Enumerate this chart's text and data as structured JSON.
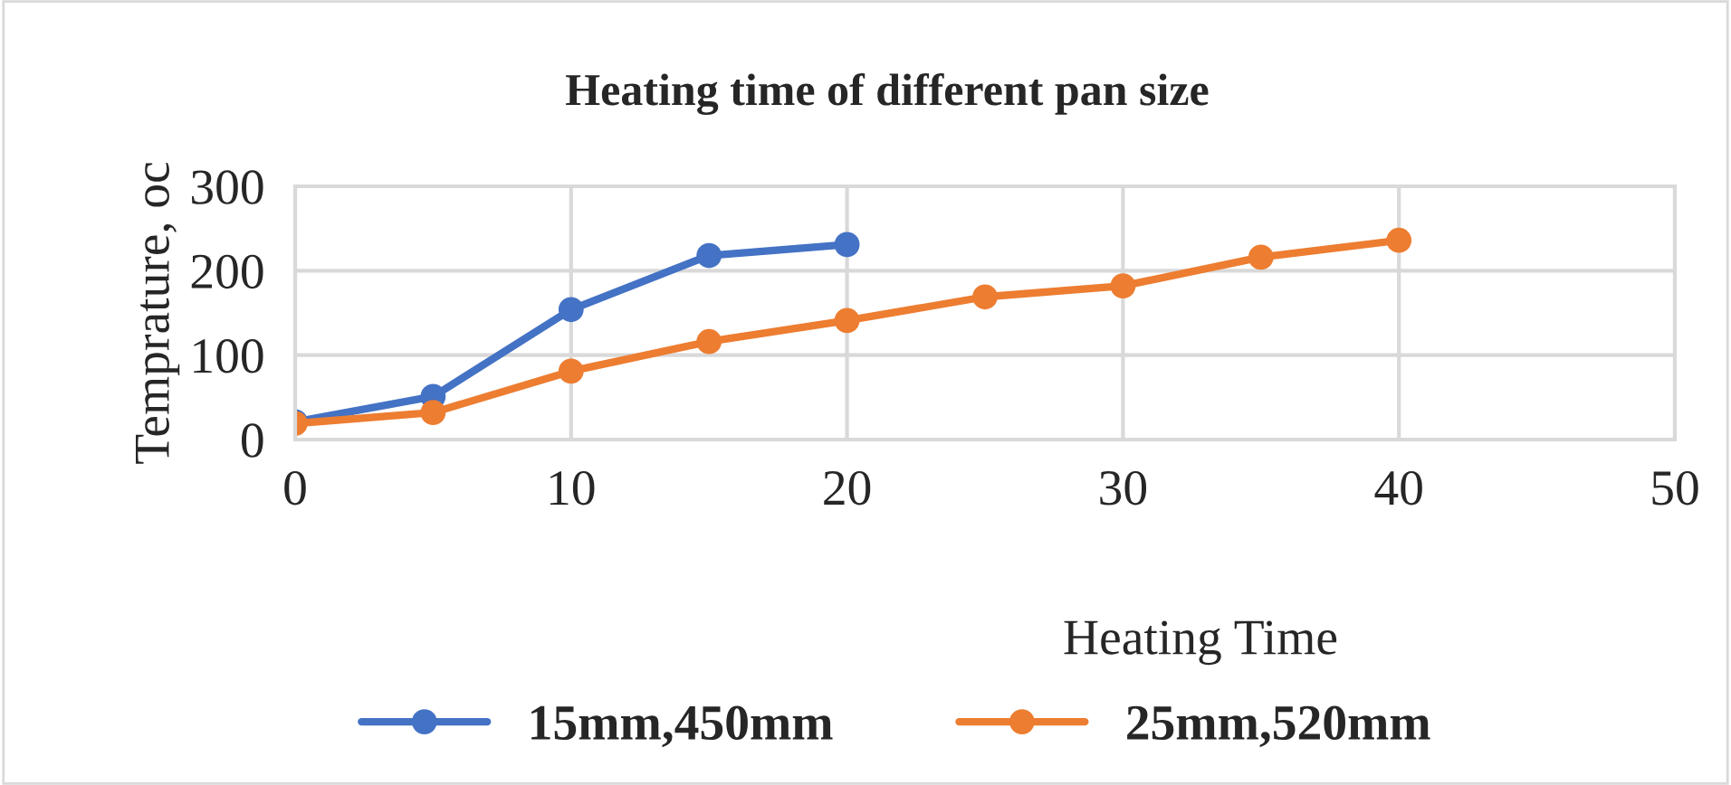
{
  "chart_data": {
    "type": "line",
    "title": "Heating time of different pan size",
    "xlabel": "Heating Time",
    "ylabel": "Temprature, oc",
    "series": [
      {
        "name": "15mm,450mm",
        "color": "#4472c4",
        "x": [
          0,
          5,
          10,
          15,
          20
        ],
        "values": [
          21,
          51,
          154,
          218,
          231
        ]
      },
      {
        "name": "25mm,520mm",
        "color": "#ed7d31",
        "x": [
          0,
          5,
          10,
          15,
          20,
          25,
          30,
          35,
          40
        ],
        "values": [
          19,
          32,
          81,
          116,
          141,
          169,
          182,
          216,
          236
        ]
      }
    ],
    "xlim": [
      0,
      50
    ],
    "xticks": [
      0,
      10,
      20,
      30,
      40,
      50
    ],
    "ylim": [
      0,
      300
    ],
    "yticks": [
      0,
      100,
      200,
      300
    ],
    "grid": true,
    "legend": "bottom",
    "marker": "circle",
    "line_style": "solid"
  }
}
